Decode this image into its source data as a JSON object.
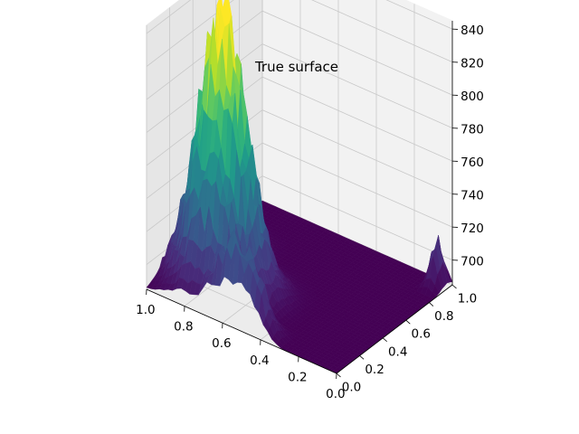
{
  "chart_data": {
    "type": "surface",
    "title": "True surface",
    "colormap": "viridis",
    "colormap_stops": [
      "#440154",
      "#482878",
      "#3e4989",
      "#31688e",
      "#26828e",
      "#1f9e89",
      "#35b779",
      "#6ece58",
      "#b5de2b",
      "#fde725"
    ],
    "xlabel": "",
    "ylabel": "",
    "zlabel": "",
    "x_ticks": [
      "0.0",
      "0.2",
      "0.4",
      "0.6",
      "0.8",
      "1.0"
    ],
    "y_ticks": [
      "0.0",
      "0.2",
      "0.4",
      "0.6",
      "0.8",
      "1.0"
    ],
    "z_ticks": [
      "700",
      "720",
      "740",
      "760",
      "780",
      "800",
      "820",
      "840"
    ],
    "xlim": [
      0,
      1
    ],
    "ylim": [
      0,
      1
    ],
    "zlim": [
      685,
      845
    ],
    "floor_value": 685,
    "grid": true,
    "peaks": [
      {
        "x": 0.75,
        "y": 0.25,
        "z": 843
      },
      {
        "x": 0.88,
        "y": 0.45,
        "z": 760
      },
      {
        "x": 0.55,
        "y": 0.05,
        "z": 735
      },
      {
        "x": 0.05,
        "y": 0.95,
        "z": 712
      }
    ]
  }
}
